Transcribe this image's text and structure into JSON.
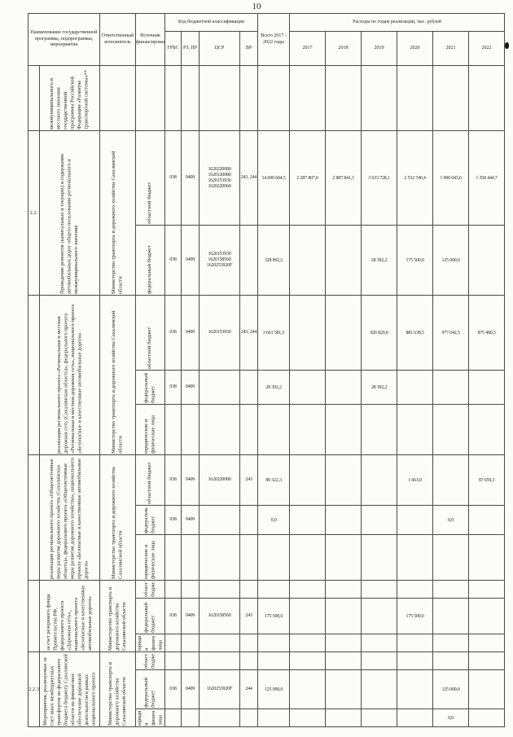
{
  "page": {
    "number": "10"
  },
  "header": {
    "name": "Наименование государственной программы, подпрограммы, мероприятия",
    "executor": "Ответственный исполнитель",
    "source": "Источник финансирования",
    "budget_class": "Код бюджетной классификации",
    "grbs": "ГРБС",
    "rzpr": "РЗ, ПР",
    "csr": "ЦСР",
    "vr": "ВР",
    "total": "Всего 2017 - 2022 годы",
    "years_group": "Расходы по годам реализации, тыс. рублей",
    "years": [
      "2017",
      "2018",
      "2019",
      "2020",
      "2021",
      "2022"
    ]
  },
  "rows": [
    {
      "num": "",
      "name": "межмуниципального и местного значения государственной программы Российской Федерации «Развитие транспортной системы»**",
      "executor": "",
      "subs": [
        {
          "source": "",
          "grbs": "",
          "rzpr": "",
          "csr": [],
          "vr": "",
          "values": [
            "",
            "",
            "",
            "",
            "",
            "",
            ""
          ]
        }
      ]
    },
    {
      "num": "2.2.",
      "name": "Проведение ремонтов (капитальных и текущих) и содержание автомобильных дорог общего пользования регионального и межмуниципального значения",
      "executor": "Министерство транспорта и дорожного хозяйства Сахалинской области",
      "subs": [
        {
          "source": "областной бюджет",
          "grbs": "038",
          "rzpr": "0409",
          "csr": [
            "1620220080",
            "1620120080",
            "1620153930",
            "1620220060"
          ],
          "vr": "243, 244",
          "values": [
            "14 690 604,5",
            "2 287 807,0",
            "2 887 841,3",
            "3 633 728,1",
            "2 532 740,4",
            "1 990 043,0",
            "1 358 444,7"
          ]
        },
        {
          "source": "федеральный бюджет",
          "grbs": "038",
          "rzpr": "0409",
          "csr": [
            "1620153930",
            "1620158560",
            "1620253920F"
          ],
          "vr": "",
          "values": [
            "328 892,2",
            "",
            "",
            "28 392,2",
            "175 500,0",
            "125 000,0",
            ""
          ]
        }
      ]
    },
    {
      "num": "",
      "name": "реализация регионального проекта «Региональная и местная дорожная сеть (Сахалинская область)», федерального проекта «Региональная и местная дорожная сеть», национального проекта «Безопасные и качественные автомобильные дороги»",
      "executor": "Министерство транспорта и дорожного хозяйства Сахалинской области",
      "subs": [
        {
          "source": "областной бюджет",
          "grbs": "038",
          "rzpr": "0409",
          "csr": [
            "1620153930"
          ],
          "vr": "243, 244",
          "values": [
            "3 661 581,5",
            "",
            "",
            "926 820,0",
            "881 638,5",
            "977 642,5",
            "875 480,5"
          ]
        },
        {
          "source": "федеральный бюджет",
          "grbs": "038",
          "rzpr": "0409",
          "csr": [],
          "vr": "",
          "values": [
            "28 392,2",
            "",
            "",
            "28 392,2",
            "",
            "",
            ""
          ]
        },
        {
          "source": "юридические и физические лица",
          "grbs": "",
          "rzpr": "",
          "csr": [],
          "vr": "",
          "values": [
            "",
            "",
            "",
            "",
            "",
            "",
            ""
          ]
        }
      ]
    },
    {
      "num": "",
      "name": "реализация регионального проекта «Общесистемные меры развития дорожного хозяйства (Сахалинская область)», федерального проекта «Общесистемные меры развития дорожного хозяйства», национального проекта «Безопасные и качественные автомобильные дороги»",
      "executor": "Министерство транспорта и дорожного хозяйства Сахалинской области",
      "subs": [
        {
          "source": "областной бюджет",
          "grbs": "038",
          "rzpr": "0409",
          "csr": [
            "1620220080"
          ],
          "vr": "243",
          "values": [
            "89 322,3",
            "",
            "",
            "",
            "1 663,0",
            "",
            "87 659,3"
          ]
        },
        {
          "source": "федеральный бюджет",
          "grbs": "038",
          "rzpr": "0409",
          "csr": [],
          "vr": "",
          "values": [
            "0,0",
            "",
            "",
            "",
            "",
            "0,0",
            ""
          ]
        },
        {
          "source": "юридические и физические лица",
          "grbs": "",
          "rzpr": "",
          "csr": [],
          "vr": "",
          "values": [
            "",
            "",
            "",
            "",
            "",
            "",
            ""
          ]
        }
      ]
    },
    {
      "num": "",
      "name": "за счет резервного фонда Правительства РФ, федерального проекта «Дорожная сеть», национального проекта «Безопасные и качественные автомобильные дороги»",
      "executor": "Министерство транспорта и дорожного хозяйства Сахалинской области",
      "subs": [
        {
          "source": "областной бюджет",
          "grbs": "",
          "rzpr": "",
          "csr": [],
          "vr": "",
          "values": [
            "",
            "",
            "",
            "",
            "",
            "",
            ""
          ]
        },
        {
          "source": "федеральный бюджет",
          "grbs": "038",
          "rzpr": "0409",
          "csr": [
            "1620158560"
          ],
          "vr": "243",
          "values": [
            "175 500,0",
            "",
            "",
            "",
            "175 500,0",
            "",
            ""
          ]
        },
        {
          "source": "юридические и физические лица",
          "grbs": "",
          "rzpr": "",
          "csr": [],
          "vr": "",
          "values": [
            "",
            "",
            "",
            "",
            "",
            "",
            ""
          ]
        }
      ]
    },
    {
      "num": "2.2.3.",
      "name": "Мероприятия, реализуемые за счет иных межбюджетных трансфертов из федерального бюджета бюджету Сахалинской области на финансовое обеспечение дорожной деятельности в рамках национального проекта",
      "executor": "Министерство транспорта и дорожного хозяйства Сахалинской области",
      "subs": [
        {
          "source": "областной бюджет",
          "grbs": "",
          "rzpr": "",
          "csr": [],
          "vr": "",
          "values": [
            "",
            "",
            "",
            "",
            "",
            "",
            ""
          ]
        },
        {
          "source": "федеральный бюджет",
          "grbs": "038",
          "rzpr": "0409",
          "csr": [
            "1620253920F"
          ],
          "vr": "244",
          "values": [
            "125 000,0",
            "",
            "",
            "",
            "",
            "125 000,0",
            ""
          ]
        },
        {
          "source": "юридические и физические лица",
          "grbs": "",
          "rzpr": "",
          "csr": [],
          "vr": "",
          "values": [
            "",
            "",
            "",
            "",
            "",
            "0,0",
            ""
          ]
        }
      ]
    }
  ]
}
